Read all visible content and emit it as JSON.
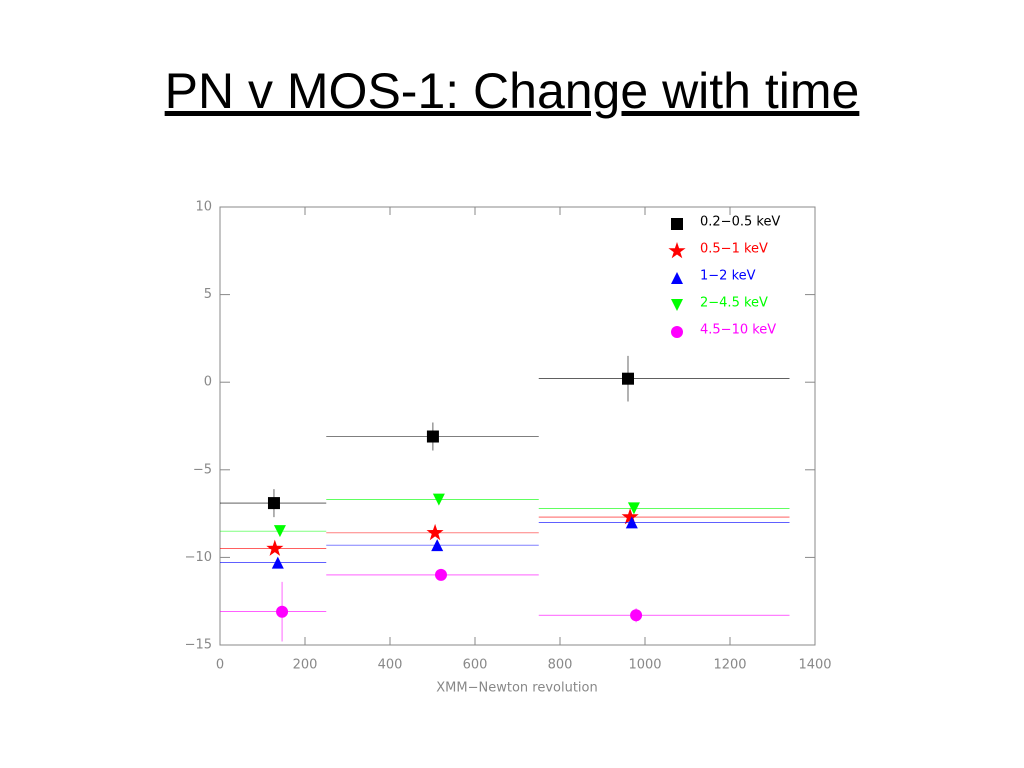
{
  "title": "PN v MOS-1: Change with time",
  "chart_data": {
    "type": "scatter",
    "xlabel": "XMM−Newton revolution",
    "xlim": [
      0,
      1400
    ],
    "xticks": [
      0,
      200,
      400,
      600,
      800,
      1000,
      1200,
      1400
    ],
    "ylim": [
      -15,
      10
    ],
    "yticks": [
      {
        "value": -15,
        "label": "−15"
      },
      {
        "value": -10,
        "label": "−10"
      },
      {
        "value": -5,
        "label": "−5"
      },
      0,
      5,
      10
    ],
    "legend": "upper right",
    "series": [
      {
        "name": "0.2−0.5 keV",
        "color": "#000000",
        "marker": "square",
        "x": [
          127,
          501,
          960
        ],
        "y": [
          -6.9,
          -3.1,
          0.2
        ],
        "yerr": [
          0.8,
          0.8,
          1.3
        ],
        "xmin": [
          0,
          250,
          750
        ],
        "xmax": [
          250,
          750,
          1340
        ]
      },
      {
        "name": "0.5−1 keV",
        "color": "#ff0000",
        "marker": "star",
        "x": [
          129,
          506,
          965
        ],
        "y": [
          -9.5,
          -8.6,
          -7.7
        ],
        "yerr": [
          0.2,
          0.2,
          0.2
        ],
        "xmin": [
          0,
          250,
          750
        ],
        "xmax": [
          250,
          750,
          1340
        ]
      },
      {
        "name": "1−2 keV",
        "color": "#0000ff",
        "marker": "triangle-up",
        "x": [
          136,
          511,
          969
        ],
        "y": [
          -10.3,
          -9.3,
          -8.0
        ],
        "yerr": [
          0.2,
          0.2,
          0.2
        ],
        "xmin": [
          0,
          250,
          750
        ],
        "xmax": [
          250,
          750,
          1340
        ]
      },
      {
        "name": "2−4.5 keV",
        "color": "#00ff00",
        "marker": "triangle-down",
        "x": [
          141,
          515,
          974
        ],
        "y": [
          -8.5,
          -6.7,
          -7.2
        ],
        "yerr": [
          0.2,
          0.2,
          0.2
        ],
        "xmin": [
          0,
          250,
          750
        ],
        "xmax": [
          250,
          750,
          1340
        ]
      },
      {
        "name": "4.5−10 keV",
        "color": "#ff00ff",
        "marker": "circle",
        "x": [
          146,
          520,
          979
        ],
        "y": [
          -13.1,
          -11.0,
          -13.3
        ],
        "yerr": [
          1.7,
          0.3,
          0.4
        ],
        "xmin": [
          0,
          250,
          750
        ],
        "xmax": [
          250,
          750,
          1340
        ]
      }
    ]
  }
}
